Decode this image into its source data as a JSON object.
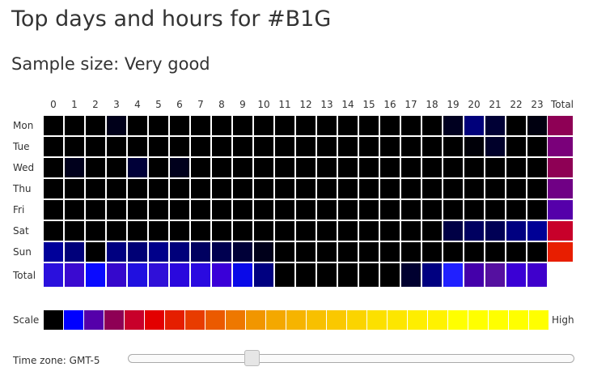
{
  "title": "Top days and hours for #B1G",
  "subtitle": "Sample size: Very good",
  "grid": {
    "hours": [
      "0",
      "1",
      "2",
      "3",
      "4",
      "5",
      "6",
      "7",
      "8",
      "9",
      "10",
      "11",
      "12",
      "13",
      "14",
      "15",
      "16",
      "17",
      "18",
      "19",
      "20",
      "21",
      "22",
      "23"
    ],
    "total_label": "Total",
    "rows": [
      {
        "day": "Mon",
        "cells": [
          "#000000",
          "#000000",
          "#000000",
          "#00001a",
          "#000000",
          "#000000",
          "#000000",
          "#000000",
          "#000000",
          "#000000",
          "#000000",
          "#000000",
          "#000000",
          "#000000",
          "#000000",
          "#000000",
          "#000000",
          "#000000",
          "#000000",
          "#000020",
          "#00007a",
          "#000035",
          "#000000",
          "#000010"
        ],
        "total": "#8e0055"
      },
      {
        "day": "Tue",
        "cells": [
          "#000000",
          "#000000",
          "#000000",
          "#000000",
          "#000000",
          "#000000",
          "#000000",
          "#000000",
          "#000000",
          "#000000",
          "#000000",
          "#000000",
          "#000000",
          "#000000",
          "#000000",
          "#000000",
          "#000000",
          "#000000",
          "#000000",
          "#000000",
          "#000008",
          "#00002a",
          "#000000",
          "#000000"
        ],
        "total": "#7a007a"
      },
      {
        "day": "Wed",
        "cells": [
          "#000000",
          "#00001c",
          "#000000",
          "#000000",
          "#000038",
          "#000000",
          "#00001c",
          "#000000",
          "#000000",
          "#000000",
          "#000000",
          "#000000",
          "#000000",
          "#000000",
          "#000000",
          "#000000",
          "#000000",
          "#000000",
          "#000000",
          "#000000",
          "#000000",
          "#000000",
          "#000000",
          "#000000"
        ],
        "total": "#8e0055"
      },
      {
        "day": "Thu",
        "cells": [
          "#000000",
          "#000000",
          "#000000",
          "#000000",
          "#000000",
          "#000000",
          "#000000",
          "#000000",
          "#000000",
          "#000000",
          "#000000",
          "#000000",
          "#000000",
          "#000000",
          "#000000",
          "#000000",
          "#000000",
          "#000000",
          "#000000",
          "#000000",
          "#000000",
          "#000000",
          "#000000",
          "#000000"
        ],
        "total": "#700085"
      },
      {
        "day": "Fri",
        "cells": [
          "#000000",
          "#000000",
          "#000000",
          "#000000",
          "#000000",
          "#000000",
          "#000000",
          "#000000",
          "#000000",
          "#000000",
          "#000000",
          "#000000",
          "#000000",
          "#000000",
          "#000000",
          "#000000",
          "#000000",
          "#000000",
          "#000000",
          "#000000",
          "#000000",
          "#000000",
          "#000000",
          "#000000"
        ],
        "total": "#5500aa"
      },
      {
        "day": "Sat",
        "cells": [
          "#000000",
          "#000000",
          "#000000",
          "#000000",
          "#000000",
          "#000000",
          "#000000",
          "#000000",
          "#000000",
          "#000000",
          "#000000",
          "#000000",
          "#000000",
          "#000000",
          "#000000",
          "#000000",
          "#000000",
          "#000000",
          "#000000",
          "#000045",
          "#000060",
          "#000055",
          "#000080",
          "#000095"
        ],
        "total": "#c8002a"
      },
      {
        "day": "Sun",
        "cells": [
          "#00009a",
          "#00007a",
          "#000000",
          "#000080",
          "#000075",
          "#00008a",
          "#00007a",
          "#000060",
          "#000050",
          "#000038",
          "#00001a",
          "#000000",
          "#000000",
          "#000000",
          "#000000",
          "#000000",
          "#000000",
          "#000000",
          "#000000",
          "#000000",
          "#000000",
          "#000000",
          "#000000",
          "#000000"
        ],
        "total": "#e81e00"
      }
    ],
    "total_row_label": "Total",
    "total_row": [
      "#2a10dd",
      "#3a0ad0",
      "#0a0aff",
      "#3508cc",
      "#2010e0",
      "#3010d8",
      "#2a08dd",
      "#2a0ae0",
      "#3a00d8",
      "#0a0ae8",
      "#000080",
      "#000000",
      "#000000",
      "#000000",
      "#000000",
      "#000000",
      "#000000",
      "#000030",
      "#000080",
      "#2020ff",
      "#4400aa",
      "#5510a0",
      "#3a00d5",
      "#3f00cc"
    ]
  },
  "scale": {
    "label": "Scale",
    "high_label": "High",
    "colors": [
      "#000000",
      "#0000ff",
      "#5500aa",
      "#8e0055",
      "#c8002a",
      "#e30000",
      "#e51e00",
      "#e83c00",
      "#eb5a00",
      "#ee7800",
      "#f19600",
      "#f4a800",
      "#f6b400",
      "#f8c000",
      "#fac800",
      "#fbd400",
      "#fce000",
      "#fde600",
      "#feee00",
      "#fff200",
      "#ffff00",
      "#ffff00",
      "#ffff00",
      "#ffff00",
      "#ffff00"
    ]
  },
  "timezone": {
    "label": "Time zone: GMT-5",
    "value": -5,
    "min": -12,
    "max": 14
  }
}
